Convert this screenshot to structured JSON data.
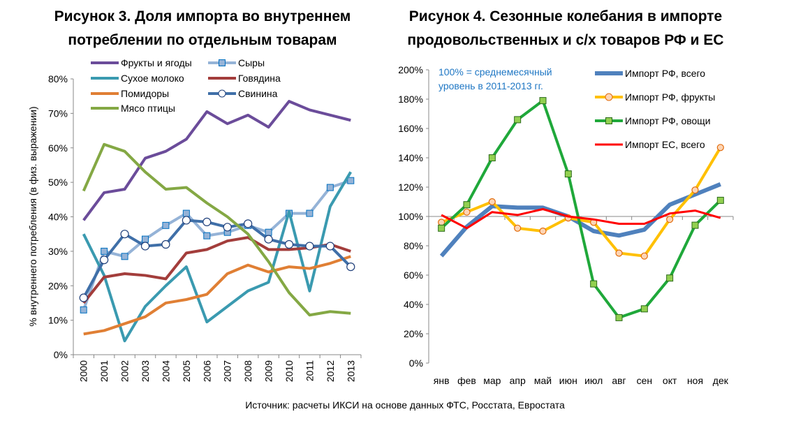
{
  "source": "Источник: расчеты ИКСИ на основе данных ФТС, Росстата, Евростата",
  "chart_data": [
    {
      "type": "line",
      "title_lines": [
        "Рисунок 3. Доля импорта во внутреннем",
        "потреблении по отдельным товарам"
      ],
      "ylabel": "% внутреннего потребления (в физ. выражении)",
      "xlabel": "",
      "ylim": [
        0,
        80
      ],
      "yticks": [
        "0%",
        "10%",
        "20%",
        "30%",
        "40%",
        "50%",
        "60%",
        "70%",
        "80%"
      ],
      "categories": [
        "2000",
        "2001",
        "2002",
        "2003",
        "2004",
        "2005",
        "2006",
        "2007",
        "2008",
        "2009",
        "2010",
        "2011",
        "2012",
        "2013"
      ],
      "legend_placement": "top",
      "series": [
        {
          "name": "Фрукты и ягоды",
          "color": "#6b4c9a",
          "marker": "none",
          "values": [
            39,
            47,
            48,
            57,
            59,
            62.5,
            70.5,
            67,
            69.5,
            66,
            73.5,
            71,
            69.5,
            68
          ]
        },
        {
          "name": "Сыры",
          "color": "#95b3d7",
          "marker": "square",
          "values": [
            13,
            30,
            28.5,
            33.5,
            37.5,
            41,
            34.5,
            35.5,
            37.5,
            35.5,
            41,
            41,
            48.5,
            50.5
          ]
        },
        {
          "name": "Сухое молоко",
          "color": "#3a9ab0",
          "marker": "none",
          "values": [
            35,
            23,
            4,
            14,
            20,
            25.5,
            9.5,
            14,
            18.5,
            21,
            41.5,
            18.5,
            43,
            53
          ]
        },
        {
          "name": "Говядина",
          "color": "#a33d3b",
          "marker": "none",
          "values": [
            15,
            22.5,
            23.5,
            23,
            22,
            29.5,
            30.5,
            33,
            34,
            30.5,
            30.5,
            31,
            32,
            30
          ]
        },
        {
          "name": "Помидоры",
          "color": "#e07f34",
          "marker": "none",
          "values": [
            6,
            7,
            9,
            11,
            15,
            16,
            17.5,
            23.5,
            26,
            24,
            25.5,
            25,
            26.5,
            28.5
          ]
        },
        {
          "name": "Свинина",
          "color": "#3f6fa8",
          "marker": "circle",
          "values": [
            16.5,
            27.5,
            35,
            31.5,
            32,
            39,
            38.5,
            37,
            38,
            33.5,
            32,
            31.5,
            31.5,
            25.5
          ]
        },
        {
          "name": "Мясо птицы",
          "color": "#84a844",
          "marker": "none",
          "values": [
            47.5,
            61,
            59,
            53,
            48,
            48.5,
            44,
            40,
            35,
            27,
            18,
            11.5,
            12.5,
            12
          ]
        }
      ]
    },
    {
      "type": "line",
      "title_lines": [
        "Рисунок 4. Сезонные колебания в импорте",
        "продовольственных и с/х товаров РФ и ЕС"
      ],
      "annotation_lines": [
        "100% = среднемесячный",
        "уровень в 2011-2013 гг."
      ],
      "xlabel": "",
      "ylabel": "",
      "ylim": [
        0,
        200
      ],
      "yticks": [
        "0%",
        "20%",
        "40%",
        "60%",
        "80%",
        "100%",
        "120%",
        "140%",
        "160%",
        "180%",
        "200%"
      ],
      "categories": [
        "янв",
        "фев",
        "мар",
        "апр",
        "май",
        "июн",
        "июл",
        "авг",
        "сен",
        "окт",
        "ноя",
        "дек"
      ],
      "legend_placement": "top-right",
      "series": [
        {
          "name": "Импорт РФ, всего",
          "color": "#4f81bd",
          "marker": "none",
          "values": [
            73,
            93,
            107,
            106,
            106,
            100,
            90,
            87,
            91,
            108,
            115,
            122
          ]
        },
        {
          "name": "Импорт РФ, фрукты",
          "color": "#ffc000",
          "marker": "circle",
          "values": [
            96,
            103,
            110,
            92,
            90,
            99,
            96,
            75,
            73,
            98,
            118,
            147
          ]
        },
        {
          "name": "Импорт РФ, овощи",
          "color": "#1fa83a",
          "marker": "square",
          "values": [
            92,
            108,
            140,
            166,
            179,
            129,
            54,
            31,
            37,
            58,
            94,
            111
          ]
        },
        {
          "name": "Импорт ЕС, всего",
          "color": "#ff0000",
          "marker": "none",
          "values": [
            101,
            92,
            103,
            101,
            105,
            100,
            98,
            95,
            95,
            102,
            104,
            99
          ]
        }
      ]
    }
  ]
}
